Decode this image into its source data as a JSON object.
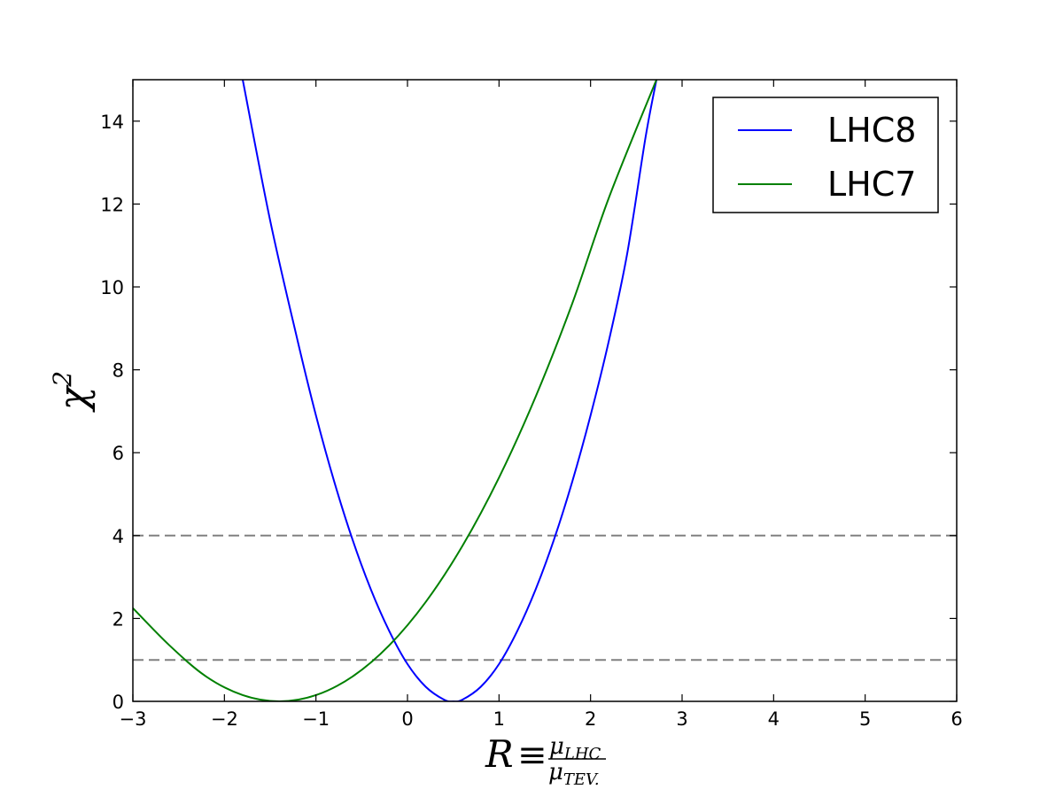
{
  "chart_data": {
    "type": "line",
    "title": "",
    "xlabel": {
      "main": "R",
      "equiv": "≡",
      "num": "μ",
      "num_sub": "LHC",
      "den": "μ",
      "den_sub": "TEV."
    },
    "ylabel": {
      "main": "χ",
      "sup": "2"
    },
    "xlim": [
      -3,
      6
    ],
    "ylim": [
      0,
      15
    ],
    "xticks": [
      -3,
      -2,
      -1,
      0,
      1,
      2,
      3,
      4,
      5,
      6
    ],
    "xtick_labels": [
      "−3",
      "−2",
      "−1",
      "0",
      "1",
      "2",
      "3",
      "4",
      "5",
      "6"
    ],
    "yticks": [
      0,
      2,
      4,
      6,
      8,
      10,
      12,
      14
    ],
    "ytick_labels": [
      "0",
      "2",
      "4",
      "6",
      "8",
      "10",
      "12",
      "14"
    ],
    "grid": false,
    "legend_position": "top-right",
    "series": [
      {
        "name": "LHC8",
        "color": "#0000ff",
        "x": [
          -1.8,
          -1.5,
          -1.2,
          -1.0,
          -0.8,
          -0.6,
          -0.4,
          -0.2,
          0.0,
          0.2,
          0.4,
          0.5,
          0.6,
          0.8,
          1.0,
          1.2,
          1.4,
          1.6,
          1.8,
          2.0,
          2.2,
          2.4,
          2.6,
          2.72
        ],
        "y": [
          15.0,
          11.6,
          8.7,
          6.9,
          5.3,
          3.9,
          2.7,
          1.7,
          0.9,
          0.35,
          0.04,
          0.0,
          0.04,
          0.35,
          0.9,
          1.7,
          2.7,
          3.9,
          5.3,
          6.9,
          8.7,
          10.8,
          13.6,
          15.0
        ]
      },
      {
        "name": "LHC7",
        "color": "#008000",
        "x": [
          -3.0,
          -2.6,
          -2.2,
          -1.8,
          -1.4,
          -1.0,
          -0.6,
          -0.2,
          0.2,
          0.6,
          1.0,
          1.4,
          1.8,
          2.2,
          2.72
        ],
        "y": [
          2.25,
          1.35,
          0.6,
          0.15,
          0.0,
          0.15,
          0.6,
          1.35,
          2.4,
          3.75,
          5.4,
          7.35,
          9.6,
          12.15,
          15.0
        ]
      }
    ],
    "reference_lines": [
      {
        "y": 1,
        "color": "#808080",
        "style": "dashed"
      },
      {
        "y": 4,
        "color": "#808080",
        "style": "dashed"
      }
    ]
  }
}
